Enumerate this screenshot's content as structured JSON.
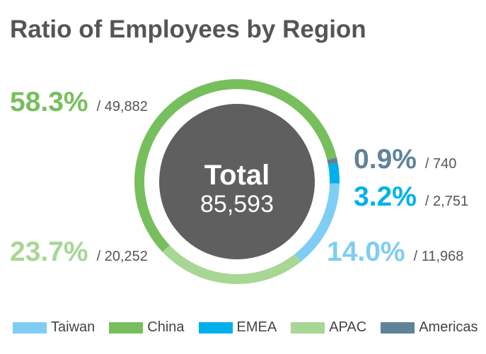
{
  "chart_data": {
    "type": "pie",
    "title": "Ratio of Employees by Region",
    "center_title": "Total",
    "center_value": "85,593",
    "categories": [
      "Taiwan",
      "China",
      "EMEA",
      "APAC",
      "Americas"
    ],
    "percent_labels": [
      "14.0%",
      "58.3%",
      "3.2%",
      "23.7%",
      "0.9%"
    ],
    "count_labels": [
      "/ 11,968",
      "/ 49,882",
      "/ 2,751",
      "/ 20,252",
      "/ 740"
    ],
    "values": [
      11968,
      49882,
      2751,
      20252,
      740
    ],
    "colors": [
      "#7fcdf4",
      "#77bf5c",
      "#00b0ec",
      "#a8d694",
      "#5f8399"
    ],
    "legend_position": "bottom"
  }
}
